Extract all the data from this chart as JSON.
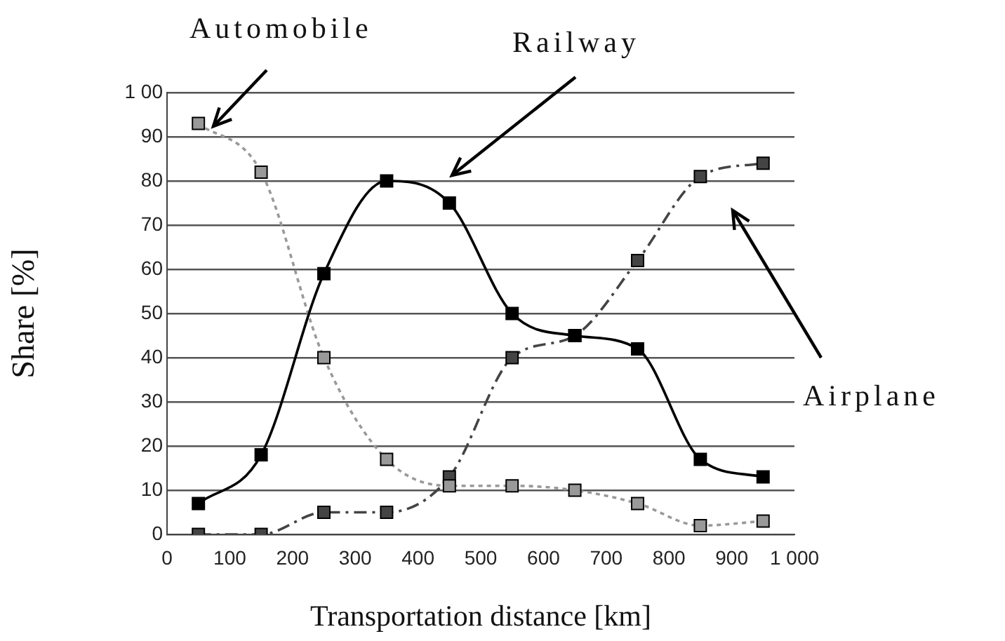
{
  "chart_data": {
    "type": "line",
    "xlabel": "Transportation distance [km]",
    "ylabel": "Share [%]",
    "x": [
      50,
      150,
      250,
      350,
      450,
      550,
      650,
      750,
      850,
      950
    ],
    "xlim": [
      0,
      1000
    ],
    "xticks": [
      0,
      100,
      200,
      300,
      400,
      500,
      600,
      700,
      800,
      900,
      {
        "value": 1000,
        "label": "1 000"
      }
    ],
    "ylim": [
      0,
      100
    ],
    "yticks": [
      0,
      10,
      20,
      30,
      40,
      50,
      60,
      70,
      80,
      90,
      {
        "value": 100,
        "label": "1 00"
      }
    ],
    "grid": "y",
    "legend": false,
    "marker": "square",
    "series": [
      {
        "name": "Railway",
        "color": "#000000",
        "line_style": "solid",
        "values": [
          7,
          18,
          59,
          80,
          75,
          50,
          45,
          42,
          17,
          13
        ]
      },
      {
        "name": "Automobile",
        "color": "#999999",
        "line_style": "dotted",
        "values": [
          93,
          82,
          40,
          17,
          11,
          11,
          10,
          7,
          2,
          3
        ]
      },
      {
        "name": "Airplane",
        "color": "#444444",
        "line_style": "dashed",
        "values": [
          0,
          0,
          5,
          5,
          13,
          40,
          45,
          62,
          81,
          84
        ]
      }
    ]
  }
}
